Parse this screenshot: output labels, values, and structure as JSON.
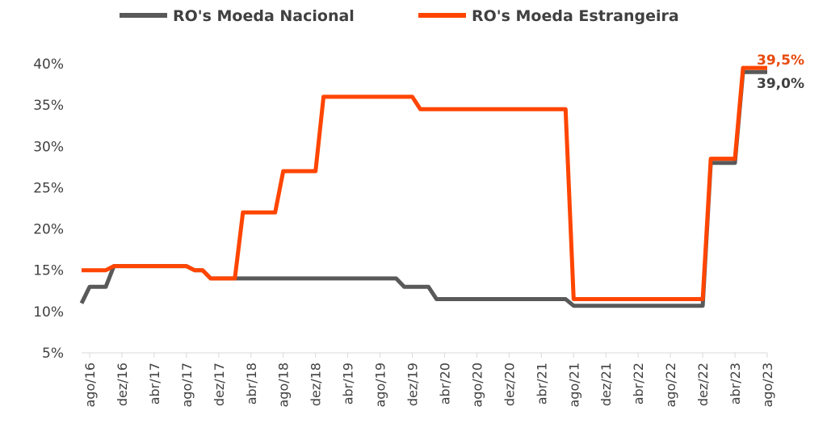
{
  "chart_data": {
    "type": "line",
    "x": [
      "jul/16",
      "ago/16",
      "set/16",
      "out/16",
      "nov/16",
      "dez/16",
      "jan/17",
      "fev/17",
      "mar/17",
      "abr/17",
      "mai/17",
      "jun/17",
      "jul/17",
      "ago/17",
      "set/17",
      "out/17",
      "nov/17",
      "dez/17",
      "jan/18",
      "fev/18",
      "mar/18",
      "abr/18",
      "mai/18",
      "jun/18",
      "jul/18",
      "ago/18",
      "set/18",
      "out/18",
      "nov/18",
      "dez/18",
      "jan/19",
      "fev/19",
      "mar/19",
      "abr/19",
      "mai/19",
      "jun/19",
      "jul/19",
      "ago/19",
      "set/19",
      "out/19",
      "nov/19",
      "dez/19",
      "jan/20",
      "fev/20",
      "mar/20",
      "abr/20",
      "mai/20",
      "jun/20",
      "jul/20",
      "ago/20",
      "set/20",
      "out/20",
      "nov/20",
      "dez/20",
      "jan/21",
      "fev/21",
      "mar/21",
      "abr/21",
      "mai/21",
      "jun/21",
      "jul/21",
      "ago/21",
      "set/21",
      "out/21",
      "nov/21",
      "dez/21",
      "jan/22",
      "fev/22",
      "mar/22",
      "abr/22",
      "mai/22",
      "jun/22",
      "jul/22",
      "ago/22",
      "set/22",
      "out/22",
      "nov/22",
      "dez/22",
      "jan/23",
      "fev/23",
      "mar/23",
      "abr/23",
      "mai/23",
      "jun/23",
      "jul/23",
      "ago/23"
    ],
    "x_tick_labels": [
      "ago/16",
      "dez/16",
      "abr/17",
      "ago/17",
      "dez/17",
      "abr/18",
      "ago/18",
      "dez/18",
      "abr/19",
      "ago/19",
      "dez/19",
      "abr/20",
      "ago/20",
      "dez/20",
      "abr/21",
      "ago/21",
      "dez/21",
      "abr/22",
      "ago/22",
      "dez/22",
      "abr/23",
      "ago/23"
    ],
    "series": [
      {
        "name": "RO's Moeda Nacional",
        "color": "#595959",
        "values": [
          11,
          13,
          13,
          13,
          15.5,
          15.5,
          15.5,
          15.5,
          15.5,
          15.5,
          15.5,
          15.5,
          15.5,
          15.5,
          15,
          15,
          14,
          14,
          14,
          14,
          14,
          14,
          14,
          14,
          14,
          14,
          14,
          14,
          14,
          14,
          14,
          14,
          14,
          14,
          14,
          14,
          14,
          14,
          14,
          14,
          13,
          13,
          13,
          13,
          11.5,
          11.5,
          11.5,
          11.5,
          11.5,
          11.5,
          11.5,
          11.5,
          11.5,
          11.5,
          11.5,
          11.5,
          11.5,
          11.5,
          11.5,
          11.5,
          11.5,
          10.7,
          10.7,
          10.7,
          10.7,
          10.7,
          10.7,
          10.7,
          10.7,
          10.7,
          10.7,
          10.7,
          10.7,
          10.7,
          10.7,
          10.7,
          10.7,
          10.7,
          28,
          28,
          28,
          28,
          39,
          39,
          39,
          39
        ]
      },
      {
        "name": "RO's Moeda Estrangeira",
        "color": "#FF4500",
        "values": [
          15,
          15,
          15,
          15,
          15.5,
          15.5,
          15.5,
          15.5,
          15.5,
          15.5,
          15.5,
          15.5,
          15.5,
          15.5,
          15,
          15,
          14,
          14,
          14,
          14,
          22,
          22,
          22,
          22,
          22,
          27,
          27,
          27,
          27,
          27,
          36,
          36,
          36,
          36,
          36,
          36,
          36,
          36,
          36,
          36,
          36,
          36,
          34.5,
          34.5,
          34.5,
          34.5,
          34.5,
          34.5,
          34.5,
          34.5,
          34.5,
          34.5,
          34.5,
          34.5,
          34.5,
          34.5,
          34.5,
          34.5,
          34.5,
          34.5,
          34.5,
          11.5,
          11.5,
          11.5,
          11.5,
          11.5,
          11.5,
          11.5,
          11.5,
          11.5,
          11.5,
          11.5,
          11.5,
          11.5,
          11.5,
          11.5,
          11.5,
          11.5,
          28.5,
          28.5,
          28.5,
          28.5,
          39.5,
          39.5,
          39.5,
          39.5
        ]
      }
    ],
    "ylim": [
      5,
      40
    ],
    "y_ticks": [
      "5%",
      "10%",
      "15%",
      "20%",
      "25%",
      "30%",
      "35%",
      "40%"
    ],
    "end_labels": [
      {
        "series": "RO's Moeda Estrangeira",
        "text": "39,5%",
        "color": "#E84A0C"
      },
      {
        "series": "RO's Moeda Nacional",
        "text": "39,0%",
        "color": "#404040"
      }
    ],
    "legend_position": "top",
    "grid": false
  }
}
